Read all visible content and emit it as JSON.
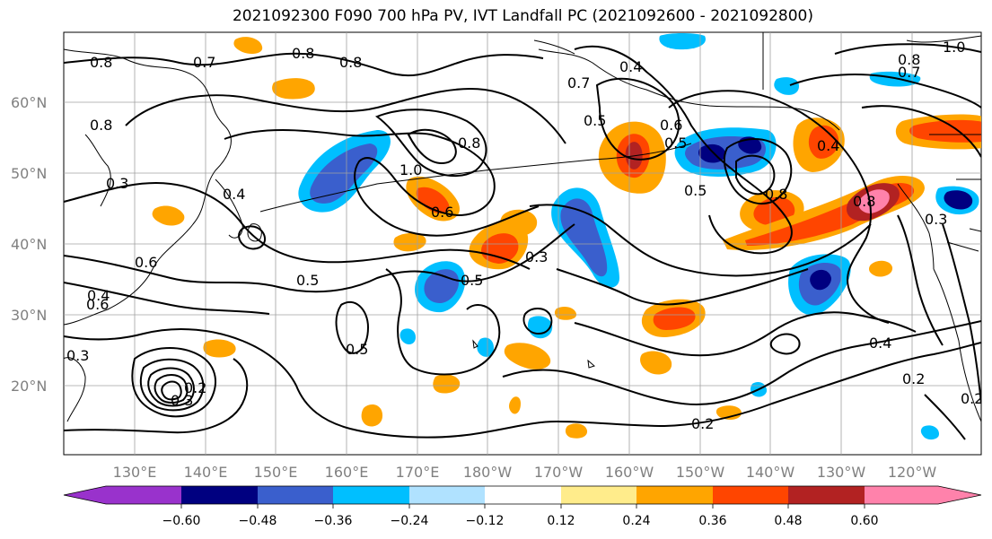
{
  "title": "2021092300 F090 700 hPa PV, IVT Landfall PC (2021092600 - 2021092800)",
  "latitude_labels": [
    "60°N",
    "50°N",
    "40°N",
    "30°N",
    "20°N"
  ],
  "longitude_labels": [
    "130°E",
    "140°E",
    "150°E",
    "160°E",
    "170°E",
    "180°W",
    "170°W",
    "160°W",
    "150°W",
    "140°W",
    "130°W",
    "120°W"
  ],
  "colorbar": {
    "ticks": [
      "−0.60",
      "−0.48",
      "−0.36",
      "−0.24",
      "−0.12",
      "0.12",
      "0.24",
      "0.36",
      "0.48",
      "0.60"
    ],
    "colors": [
      "#9932cc",
      "#000080",
      "#3a5fcd",
      "#00bfff",
      "#b0e2ff",
      "#ffffff",
      "#ffec8b",
      "#ffa500",
      "#ff4500",
      "#b22222",
      "#ff82ab"
    ]
  },
  "contour_labels": [
    "0.8",
    "0.7",
    "0.8",
    "0.8",
    "0.8",
    "0.4",
    "0.7",
    "0.5",
    "0.8",
    "0.6",
    "0.3",
    "0.4",
    "1.0",
    "0.6",
    "0.8",
    "0.5",
    "0.5",
    "0.3",
    "0.5",
    "0.6",
    "0.4",
    "0.5",
    "0.8",
    "0.4",
    "0.5",
    "0.6",
    "0.3",
    "0.2",
    "0.4",
    "0.2",
    "0.2",
    "0.3",
    "1.0",
    "0.8",
    "0.7",
    "0.3",
    "0.2"
  ],
  "colors": {
    "contour": "#000000",
    "grid": "#808080",
    "coast": "#000000"
  }
}
